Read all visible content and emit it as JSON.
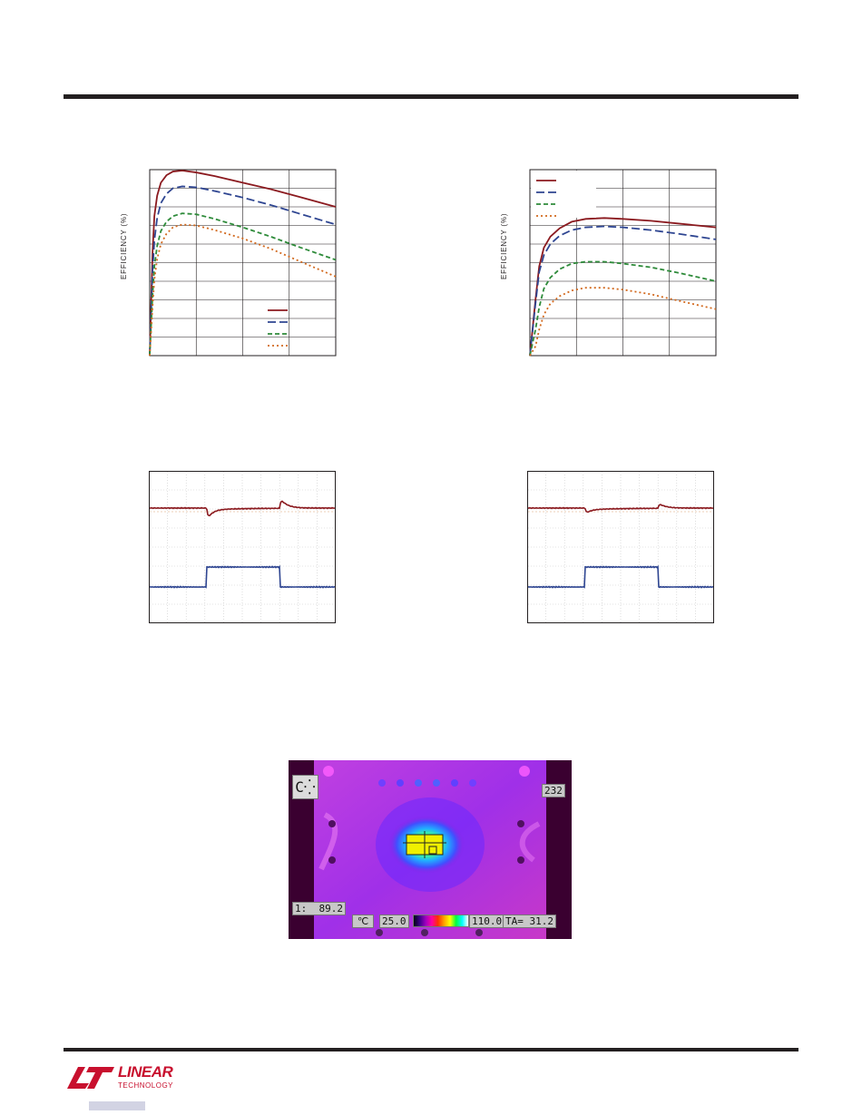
{
  "chart_data": [
    {
      "type": "line",
      "ylabel": "EFFICIENCY (%)",
      "legend_position": "bottom-right",
      "grid": true,
      "x": [
        0.0,
        0.03,
        0.05,
        0.08,
        0.12,
        0.18,
        0.25,
        0.35,
        0.5,
        0.7,
        1.0,
        1.3,
        1.6,
        2.0
      ],
      "series": [
        {
          "color": "#8b1a1f",
          "dash": "solid",
          "values": [
            0,
            55,
            75,
            86,
            93,
            97,
            99,
            99.5,
            98.5,
            96.5,
            93,
            89.5,
            85.5,
            80
          ]
        },
        {
          "color": "#2e4591",
          "dash": "long",
          "values": [
            0,
            45,
            62,
            74,
            82,
            87,
            90,
            91,
            90.5,
            88.5,
            85,
            81,
            76.5,
            70.5
          ]
        },
        {
          "color": "#2e8b3a",
          "dash": "medium",
          "values": [
            0,
            32,
            48,
            59,
            67,
            72,
            75,
            76.5,
            76,
            73.5,
            69,
            64,
            58.5,
            51.5
          ]
        },
        {
          "color": "#d2691e",
          "dash": "dotted",
          "values": [
            0,
            26,
            41,
            52,
            60,
            65.5,
            69,
            70.5,
            70,
            67.5,
            63,
            57.5,
            51,
            42.5
          ]
        }
      ]
    },
    {
      "type": "line",
      "ylabel": "EFFICIENCY (%)",
      "legend_position": "top-left",
      "grid": true,
      "x": [
        0.0,
        0.06,
        0.1,
        0.15,
        0.22,
        0.32,
        0.45,
        0.6,
        0.8,
        1.0,
        1.3,
        1.6,
        2.0
      ],
      "series": [
        {
          "color": "#8b1a1f",
          "dash": "solid",
          "values": [
            0,
            30,
            48,
            58,
            64,
            68.5,
            72,
            73.5,
            74,
            73.5,
            72.5,
            71,
            69
          ]
        },
        {
          "color": "#2e4591",
          "dash": "long",
          "values": [
            0,
            28,
            45,
            54,
            60,
            64.5,
            67.5,
            69,
            69.5,
            69,
            67.5,
            65.5,
            62.5
          ]
        },
        {
          "color": "#2e8b3a",
          "dash": "medium",
          "values": [
            0,
            14,
            26,
            36,
            42,
            46.5,
            49.5,
            50.5,
            50.5,
            49.5,
            47.5,
            44.5,
            40
          ]
        },
        {
          "color": "#d2691e",
          "dash": "dotted",
          "values": [
            0,
            5,
            14,
            22,
            28,
            32,
            35,
            36.5,
            36.5,
            35.5,
            33,
            29.5,
            25
          ]
        }
      ]
    }
  ],
  "scopes": [
    {
      "trace1_color": "#8b1a1f",
      "trace2_color": "#2e4591",
      "step_start": 0.31,
      "step_end": 0.7,
      "trace1_dip": 0.14,
      "trace1_overshoot": 0.12
    },
    {
      "trace1_color": "#8b1a1f",
      "trace2_color": "#2e4591",
      "step_start": 0.31,
      "step_end": 0.7,
      "trace1_dip": 0.07,
      "trace1_overshoot": 0.06
    }
  ],
  "thermal": {
    "max_readout": "232",
    "spot_readout": "1:  89.2",
    "scale_icon": "thermometer-icon",
    "scale_low": "25.0",
    "scale_high": "110.0",
    "ambient": "TA= 31.2",
    "badge_icon": "auto-range-icon"
  },
  "logo": {
    "word1": "LINEAR",
    "word2": "TECHNOLOGY"
  }
}
